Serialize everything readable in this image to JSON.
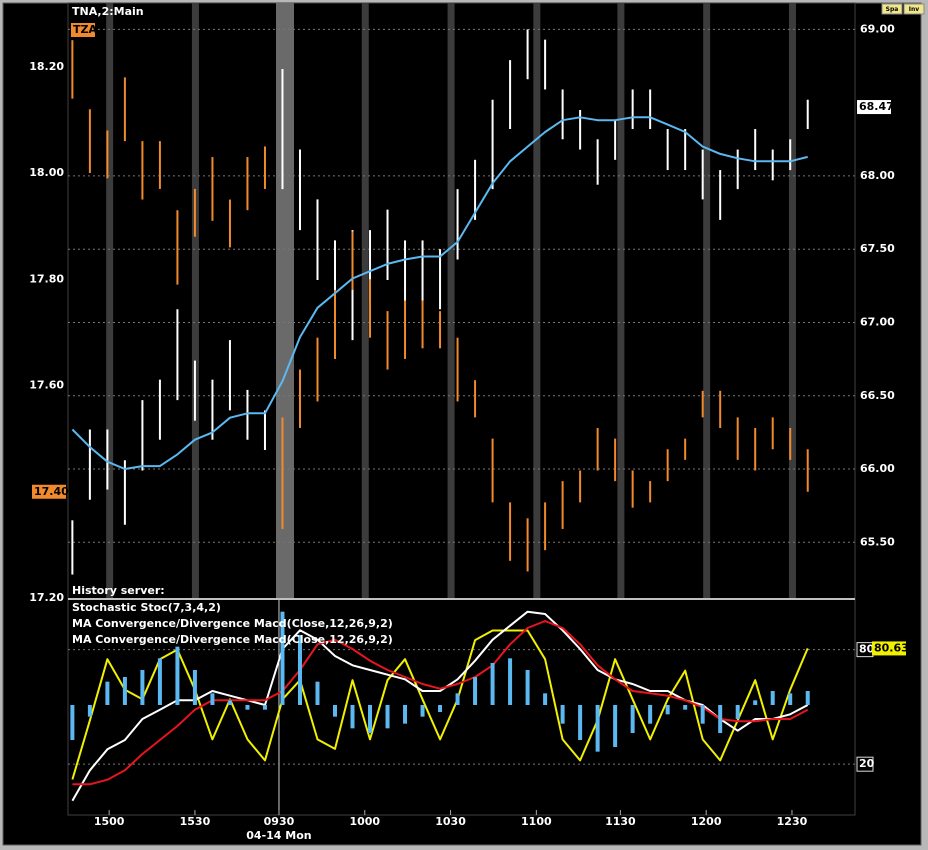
{
  "toolbar": [
    "Spa",
    "Inv"
  ],
  "chart_data": [
    {
      "type": "bar",
      "title": "TNA,2:Main",
      "annotations": [
        "History server:"
      ],
      "x": [
        0,
        1,
        2,
        3,
        4,
        5,
        6,
        7,
        8,
        9,
        10,
        11,
        12,
        13,
        14,
        15,
        16,
        17,
        18,
        19,
        20,
        21,
        22,
        23,
        24,
        25,
        26,
        27,
        28,
        29,
        30,
        31,
        32,
        33,
        34,
        35,
        36,
        37,
        38,
        39,
        40,
        41,
        42
      ],
      "xlim": [
        -0.25,
        44.7
      ],
      "ylim": [
        17.2,
        18.32
      ],
      "yticks": [
        {
          "value": 17.2,
          "label": "17.20"
        },
        {
          "value": 17.6,
          "label": "17.60"
        },
        {
          "value": 17.8,
          "label": "17.80"
        },
        {
          "value": 18,
          "label": "18.00"
        },
        {
          "value": 18.2,
          "label": "18.20"
        }
      ],
      "y2lim": [
        65.12,
        69.18
      ],
      "y2ticks": [
        {
          "value": 65.5,
          "label": "65.50"
        },
        {
          "value": 66,
          "label": "66.00"
        },
        {
          "value": 66.5,
          "label": "66.50"
        },
        {
          "value": 67,
          "label": "67.00"
        },
        {
          "value": 67.5,
          "label": "67.50"
        },
        {
          "value": 68,
          "label": "68.00"
        },
        {
          "value": 69,
          "label": "69.00"
        }
      ],
      "grid": true,
      "series": [
        {
          "style": "range",
          "axis": "y2",
          "color": "#ffffff",
          "high": [
            65.65,
            66.27,
            66.27,
            66.06,
            66.47,
            66.61,
            67.09,
            66.74,
            66.61,
            66.88,
            66.54,
            66.4,
            68.73,
            68.18,
            67.84,
            67.56,
            67.63,
            67.63,
            67.77,
            67.56,
            67.56,
            67.5,
            67.91,
            68.11,
            68.52,
            68.79,
            69.0,
            68.93,
            68.59,
            68.45,
            68.25,
            68.38,
            68.59,
            68.59,
            68.32,
            68.32,
            68.18,
            68.04,
            68.18,
            68.32,
            68.18,
            68.25,
            68.52
          ],
          "low": [
            65.28,
            65.79,
            65.86,
            65.62,
            65.99,
            66.2,
            66.47,
            66.33,
            66.2,
            66.4,
            66.2,
            66.13,
            67.91,
            67.63,
            67.29,
            67.02,
            66.88,
            67.15,
            67.29,
            67.15,
            67.15,
            67.09,
            67.43,
            67.7,
            67.91,
            68.32,
            68.66,
            68.59,
            68.25,
            68.18,
            67.94,
            68.11,
            68.32,
            68.32,
            68.04,
            68.04,
            67.84,
            67.7,
            67.91,
            68.04,
            67.97,
            68.04,
            68.32
          ],
          "last": 68.47,
          "tag_color": "#ffffff"
        },
        {
          "name": "TZA",
          "style": "range",
          "axis": "y",
          "color": "#f08a2c",
          "high": [
            18.25,
            18.12,
            18.08,
            18.18,
            18.06,
            18.06,
            17.93,
            17.97,
            18.03,
            17.95,
            18.03,
            18.05,
            17.54,
            17.63,
            17.69,
            17.78,
            17.89,
            17.8,
            17.74,
            17.76,
            17.76,
            17.74,
            17.69,
            17.61,
            17.5,
            17.38,
            17.35,
            17.38,
            17.42,
            17.44,
            17.52,
            17.5,
            17.44,
            17.42,
            17.48,
            17.5,
            17.59,
            17.59,
            17.54,
            17.52,
            17.54,
            17.52,
            17.48
          ],
          "low": [
            18.14,
            18.0,
            17.99,
            18.06,
            17.95,
            17.97,
            17.79,
            17.88,
            17.91,
            17.86,
            17.93,
            17.97,
            17.33,
            17.52,
            17.57,
            17.65,
            17.78,
            17.69,
            17.63,
            17.65,
            17.67,
            17.67,
            17.57,
            17.54,
            17.38,
            17.27,
            17.25,
            17.29,
            17.33,
            17.38,
            17.44,
            17.42,
            17.37,
            17.38,
            17.42,
            17.46,
            17.54,
            17.52,
            17.46,
            17.44,
            17.48,
            17.46,
            17.4
          ],
          "last": {
            "value": 17.4,
            "label": "17.40"
          },
          "tag_color": "#f08a2c"
        },
        {
          "style": "line",
          "axis": "y2",
          "color": "#5bb8f0",
          "values": [
            66.27,
            66.15,
            66.05,
            66.0,
            66.02,
            66.02,
            66.1,
            66.2,
            66.25,
            66.35,
            66.38,
            66.38,
            66.6,
            66.9,
            67.1,
            67.2,
            67.3,
            67.35,
            67.4,
            67.43,
            67.45,
            67.45,
            67.55,
            67.75,
            67.95,
            68.1,
            68.2,
            68.3,
            68.38,
            68.4,
            68.38,
            68.38,
            68.4,
            68.4,
            68.35,
            68.3,
            68.2,
            68.15,
            68.12,
            68.1,
            68.1,
            68.1,
            68.13
          ]
        }
      ]
    },
    {
      "type": "line",
      "x": [
        0,
        1,
        2,
        3,
        4,
        5,
        6,
        7,
        8,
        9,
        10,
        11,
        12,
        13,
        14,
        15,
        16,
        17,
        18,
        19,
        20,
        21,
        22,
        23,
        24,
        25,
        26,
        27,
        28,
        29,
        30,
        31,
        32,
        33,
        34,
        35,
        36,
        37,
        38,
        39,
        40,
        41,
        42
      ],
      "xlim": [
        -0.25,
        44.7
      ],
      "xticks": [
        {
          "value": 2.1,
          "label": "1500"
        },
        {
          "value": 7.0,
          "label": "1530"
        },
        {
          "value": 11.8,
          "label": "0930"
        },
        {
          "value": 16.7,
          "label": "1000"
        },
        {
          "value": 21.6,
          "label": "1030"
        },
        {
          "value": 26.5,
          "label": "1100"
        },
        {
          "value": 31.3,
          "label": "1130"
        },
        {
          "value": 36.2,
          "label": "1200"
        },
        {
          "value": 41.1,
          "label": "1230"
        }
      ],
      "date_label": "04-14 Mon",
      "ylim": [
        -4,
        106
      ],
      "yticks": [
        20,
        80
      ],
      "y2lim": [
        -0.45,
        0.45
      ],
      "grid": true,
      "series": [
        {
          "name": "Stochastic Stoc(7,3,4,2)",
          "style": "line",
          "axis": "y",
          "color": "#f0f000",
          "values": [
            12,
            43,
            75,
            59,
            54,
            75,
            80,
            59,
            33,
            54,
            33,
            22,
            54,
            64,
            33,
            28,
            64,
            33,
            64,
            75,
            54,
            33,
            54,
            85,
            90,
            90,
            90,
            75,
            33,
            22,
            43,
            75,
            54,
            33,
            54,
            69,
            33,
            22,
            43,
            64,
            33,
            59,
            80.63
          ],
          "last": 80.63,
          "tag_color": "#f0f000"
        },
        {
          "name": "MA Convergence/Divergence Macd(Close,12,26,9,2)",
          "style": "line",
          "axis": "y2",
          "color": "#ffffff",
          "values": [
            -0.41,
            -0.28,
            -0.19,
            -0.15,
            -0.06,
            -0.02,
            0.02,
            0.02,
            0.06,
            0.04,
            0.02,
            0,
            0.24,
            0.32,
            0.28,
            0.21,
            0.17,
            0.15,
            0.13,
            0.11,
            0.06,
            0.06,
            0.11,
            0.19,
            0.28,
            0.34,
            0.4,
            0.39,
            0.32,
            0.24,
            0.15,
            0.11,
            0.09,
            0.06,
            0.06,
            0.02,
            0,
            -0.06,
            -0.11,
            -0.06,
            -0.06,
            -0.04,
            0
          ]
        },
        {
          "name": "MA Convergence/Divergence Macd(Close,12,26,9,2)",
          "style": "line",
          "axis": "y2",
          "color": "#e8141e",
          "values": [
            -0.34,
            -0.34,
            -0.32,
            -0.28,
            -0.21,
            -0.15,
            -0.09,
            -0.02,
            0.02,
            0.02,
            0.02,
            0.02,
            0.06,
            0.15,
            0.26,
            0.28,
            0.24,
            0.19,
            0.15,
            0.12,
            0.09,
            0.07,
            0.09,
            0.12,
            0.17,
            0.26,
            0.33,
            0.36,
            0.33,
            0.26,
            0.17,
            0.11,
            0.06,
            0.05,
            0.04,
            0.02,
            -0.01,
            -0.06,
            -0.07,
            -0.07,
            -0.06,
            -0.06,
            -0.02
          ]
        },
        {
          "style": "histogram",
          "axis": "y2",
          "color": "#5bb8f0",
          "values": [
            -0.15,
            -0.05,
            0.1,
            0.12,
            0.15,
            0.2,
            0.25,
            0.15,
            0.05,
            0.02,
            -0.02,
            -0.02,
            0.4,
            0.3,
            0.1,
            -0.05,
            -0.1,
            -0.12,
            -0.1,
            -0.08,
            -0.05,
            -0.03,
            0.05,
            0.12,
            0.18,
            0.2,
            0.15,
            0.05,
            -0.08,
            -0.15,
            -0.2,
            -0.18,
            -0.12,
            -0.08,
            -0.04,
            -0.02,
            -0.08,
            -0.12,
            -0.06,
            0.02,
            0.06,
            0.05,
            0.06
          ]
        }
      ]
    }
  ]
}
